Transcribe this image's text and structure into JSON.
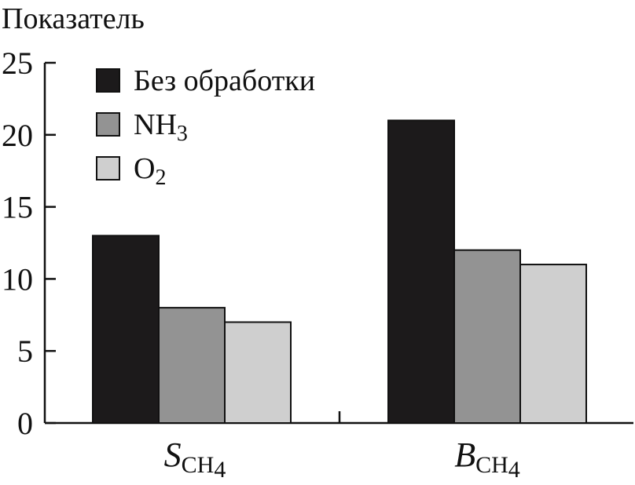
{
  "chart_data": {
    "type": "bar",
    "ylabel": "Показатель",
    "ylim": [
      0,
      25
    ],
    "yticks": [
      "0",
      "5",
      "10",
      "15",
      "20",
      "25"
    ],
    "categories": [
      {
        "main": "S",
        "sub": "CH",
        "subsub": "4"
      },
      {
        "main": "B",
        "sub": "CH",
        "subsub": "4"
      }
    ],
    "series": [
      {
        "name": "Без обработки",
        "name_sub": "",
        "color": "#1c1a1b",
        "values": [
          13,
          21
        ]
      },
      {
        "name": "NH",
        "name_sub": "3",
        "color": "#939393",
        "values": [
          8,
          12
        ]
      },
      {
        "name": "O",
        "name_sub": "2",
        "color": "#cfcfcf",
        "values": [
          7,
          11
        ]
      }
    ],
    "legend_position": "top-left",
    "grid": false
  }
}
